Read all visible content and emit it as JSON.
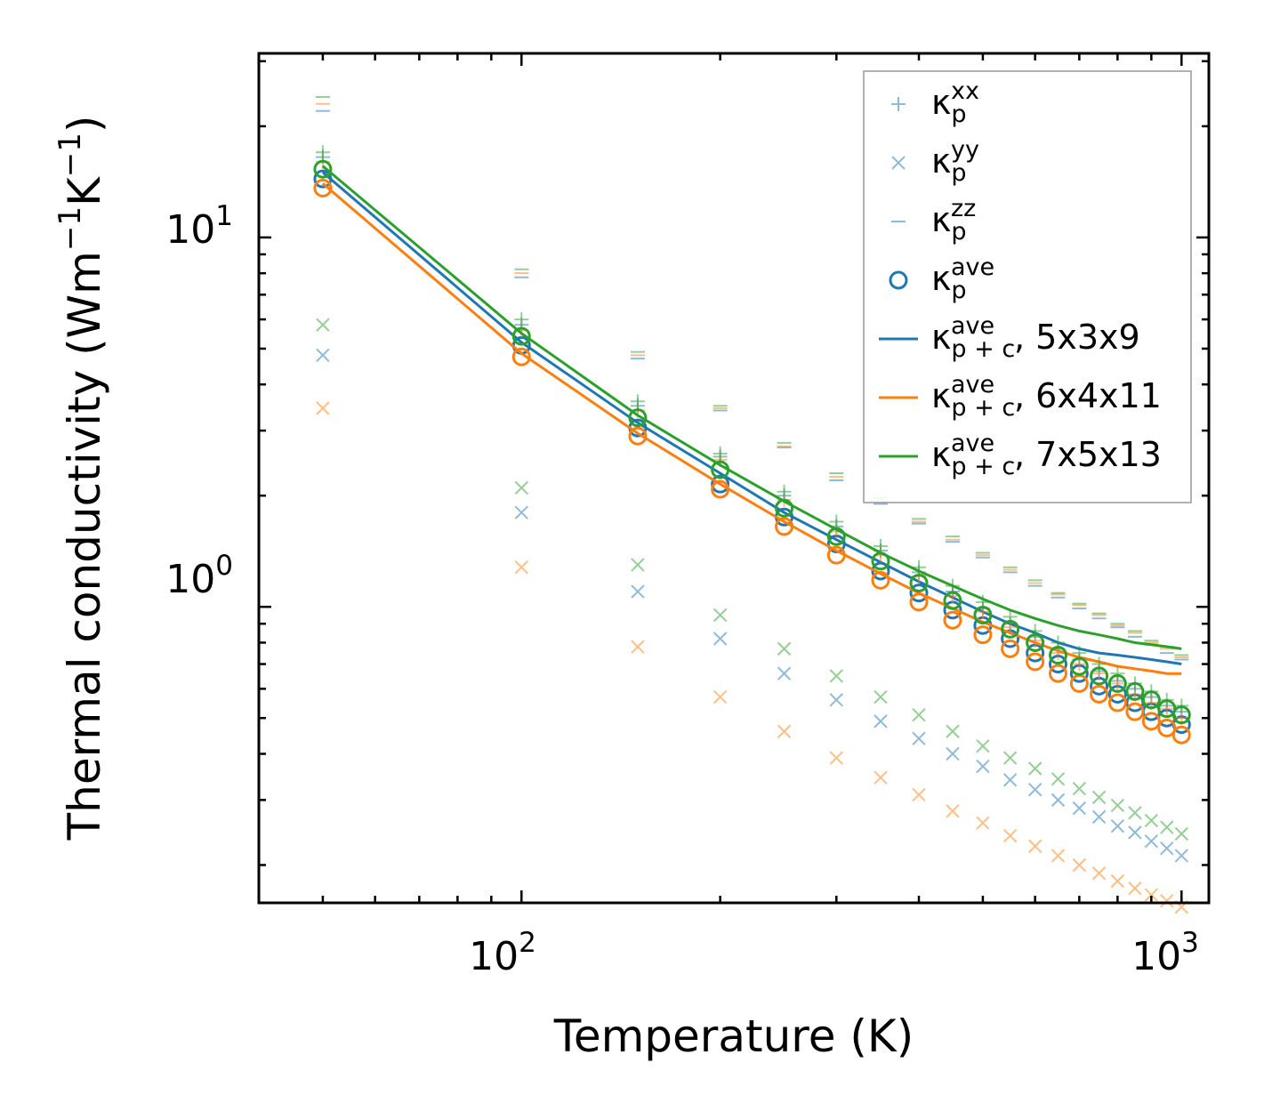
{
  "chart_data": {
    "type": "scatter",
    "xscale": "log",
    "yscale": "log",
    "xlim": [
      40,
      1100
    ],
    "ylim": [
      0.158,
      31.5
    ],
    "xlabel": "Temperature (K)",
    "ylabel_parts": {
      "main": "Thermal conductivity (Wm",
      "exp1": "−1",
      "mid": "K",
      "exp2": "−1",
      "end": ")"
    },
    "x_ticks": [
      {
        "base": "10",
        "exp": "2"
      },
      {
        "base": "10",
        "exp": "3"
      }
    ],
    "y_ticks": [
      {
        "base": "10",
        "exp": "0"
      },
      {
        "base": "10",
        "exp": "1"
      }
    ],
    "legend": [
      {
        "sym": "κ",
        "sub": "p",
        "sup": "xx",
        "suffix": ""
      },
      {
        "sym": "κ",
        "sub": "p",
        "sup": "yy",
        "suffix": ""
      },
      {
        "sym": "κ",
        "sub": "p",
        "sup": "zz",
        "suffix": ""
      },
      {
        "sym": "κ",
        "sub": "p",
        "sup": "ave",
        "suffix": ""
      },
      {
        "sym": "κ",
        "sub": "p + c",
        "sup": "ave",
        "suffix": ", 5x3x9"
      },
      {
        "sym": "κ",
        "sub": "p + c",
        "sup": "ave",
        "suffix": ", 6x4x11"
      },
      {
        "sym": "κ",
        "sub": "p + c",
        "sup": "ave",
        "suffix": ", 7x5x13"
      }
    ],
    "x": [
      50,
      100,
      150,
      200,
      250,
      300,
      350,
      400,
      450,
      500,
      550,
      600,
      650,
      700,
      750,
      800,
      850,
      900,
      950,
      1000
    ],
    "series": [
      {
        "name": "5x3x9",
        "color": "#1f77b4",
        "xx": [
          16.5,
          5.8,
          3.5,
          2.55,
          2.0,
          1.65,
          1.42,
          1.24,
          1.1,
          0.99,
          0.9,
          0.83,
          0.77,
          0.72,
          0.67,
          0.63,
          0.6,
          0.57,
          0.54,
          0.52
        ],
        "yy": [
          4.8,
          1.8,
          1.1,
          0.82,
          0.66,
          0.56,
          0.49,
          0.44,
          0.4,
          0.37,
          0.34,
          0.32,
          0.3,
          0.285,
          0.27,
          0.255,
          0.245,
          0.232,
          0.222,
          0.212
        ],
        "zz": [
          22.0,
          7.8,
          4.7,
          3.4,
          2.7,
          2.2,
          1.9,
          1.68,
          1.5,
          1.36,
          1.24,
          1.14,
          1.06,
          0.99,
          0.93,
          0.88,
          0.83,
          0.79,
          0.75,
          0.72
        ],
        "ave": [
          14.4,
          5.1,
          3.05,
          2.15,
          1.75,
          1.48,
          1.25,
          1.09,
          0.98,
          0.89,
          0.82,
          0.75,
          0.7,
          0.66,
          0.61,
          0.58,
          0.55,
          0.52,
          0.5,
          0.48
        ],
        "line": [
          15.0,
          5.2,
          3.15,
          2.3,
          1.8,
          1.52,
          1.32,
          1.17,
          1.06,
          0.97,
          0.9,
          0.85,
          0.8,
          0.77,
          0.75,
          0.74,
          0.73,
          0.72,
          0.71,
          0.7
        ]
      },
      {
        "name": "6x4x11",
        "color": "#ff7f0e",
        "xx": [
          16.0,
          5.6,
          3.4,
          2.5,
          1.95,
          1.6,
          1.38,
          1.21,
          1.07,
          0.97,
          0.88,
          0.81,
          0.75,
          0.7,
          0.66,
          0.62,
          0.58,
          0.55,
          0.53,
          0.5
        ],
        "yy": [
          3.45,
          1.28,
          0.78,
          0.57,
          0.46,
          0.39,
          0.345,
          0.31,
          0.28,
          0.26,
          0.24,
          0.225,
          0.212,
          0.2,
          0.19,
          0.181,
          0.173,
          0.166,
          0.16,
          0.154
        ],
        "zz": [
          23.0,
          8.0,
          4.8,
          3.45,
          2.72,
          2.25,
          1.93,
          1.7,
          1.52,
          1.38,
          1.26,
          1.16,
          1.08,
          1.01,
          0.95,
          0.89,
          0.85,
          0.8,
          0.77,
          0.73
        ],
        "ave": [
          13.6,
          4.75,
          2.9,
          2.08,
          1.65,
          1.38,
          1.18,
          1.03,
          0.92,
          0.84,
          0.77,
          0.71,
          0.66,
          0.62,
          0.58,
          0.55,
          0.52,
          0.49,
          0.47,
          0.45
        ],
        "line": [
          14.0,
          4.85,
          2.95,
          2.15,
          1.7,
          1.42,
          1.23,
          1.09,
          0.99,
          0.91,
          0.85,
          0.8,
          0.76,
          0.73,
          0.71,
          0.69,
          0.68,
          0.67,
          0.66,
          0.66
        ]
      },
      {
        "name": "7x5x13",
        "color": "#2ca02c",
        "xx": [
          17.0,
          6.0,
          3.6,
          2.6,
          2.05,
          1.7,
          1.46,
          1.28,
          1.14,
          1.03,
          0.94,
          0.86,
          0.8,
          0.75,
          0.7,
          0.66,
          0.62,
          0.59,
          0.56,
          0.54
        ],
        "yy": [
          5.8,
          2.1,
          1.3,
          0.95,
          0.77,
          0.65,
          0.57,
          0.51,
          0.46,
          0.42,
          0.39,
          0.365,
          0.342,
          0.322,
          0.305,
          0.29,
          0.277,
          0.264,
          0.253,
          0.243
        ],
        "zz": [
          24.0,
          8.2,
          4.9,
          3.5,
          2.78,
          2.3,
          1.97,
          1.73,
          1.55,
          1.4,
          1.28,
          1.18,
          1.09,
          1.02,
          0.96,
          0.9,
          0.86,
          0.81,
          0.78,
          0.74
        ],
        "ave": [
          15.3,
          5.4,
          3.25,
          2.35,
          1.85,
          1.55,
          1.33,
          1.16,
          1.04,
          0.95,
          0.87,
          0.8,
          0.74,
          0.69,
          0.65,
          0.62,
          0.59,
          0.56,
          0.53,
          0.51
        ],
        "line": [
          15.6,
          5.5,
          3.3,
          2.42,
          1.93,
          1.62,
          1.4,
          1.25,
          1.14,
          1.05,
          0.98,
          0.93,
          0.89,
          0.86,
          0.84,
          0.82,
          0.8,
          0.79,
          0.78,
          0.77
        ]
      }
    ]
  }
}
